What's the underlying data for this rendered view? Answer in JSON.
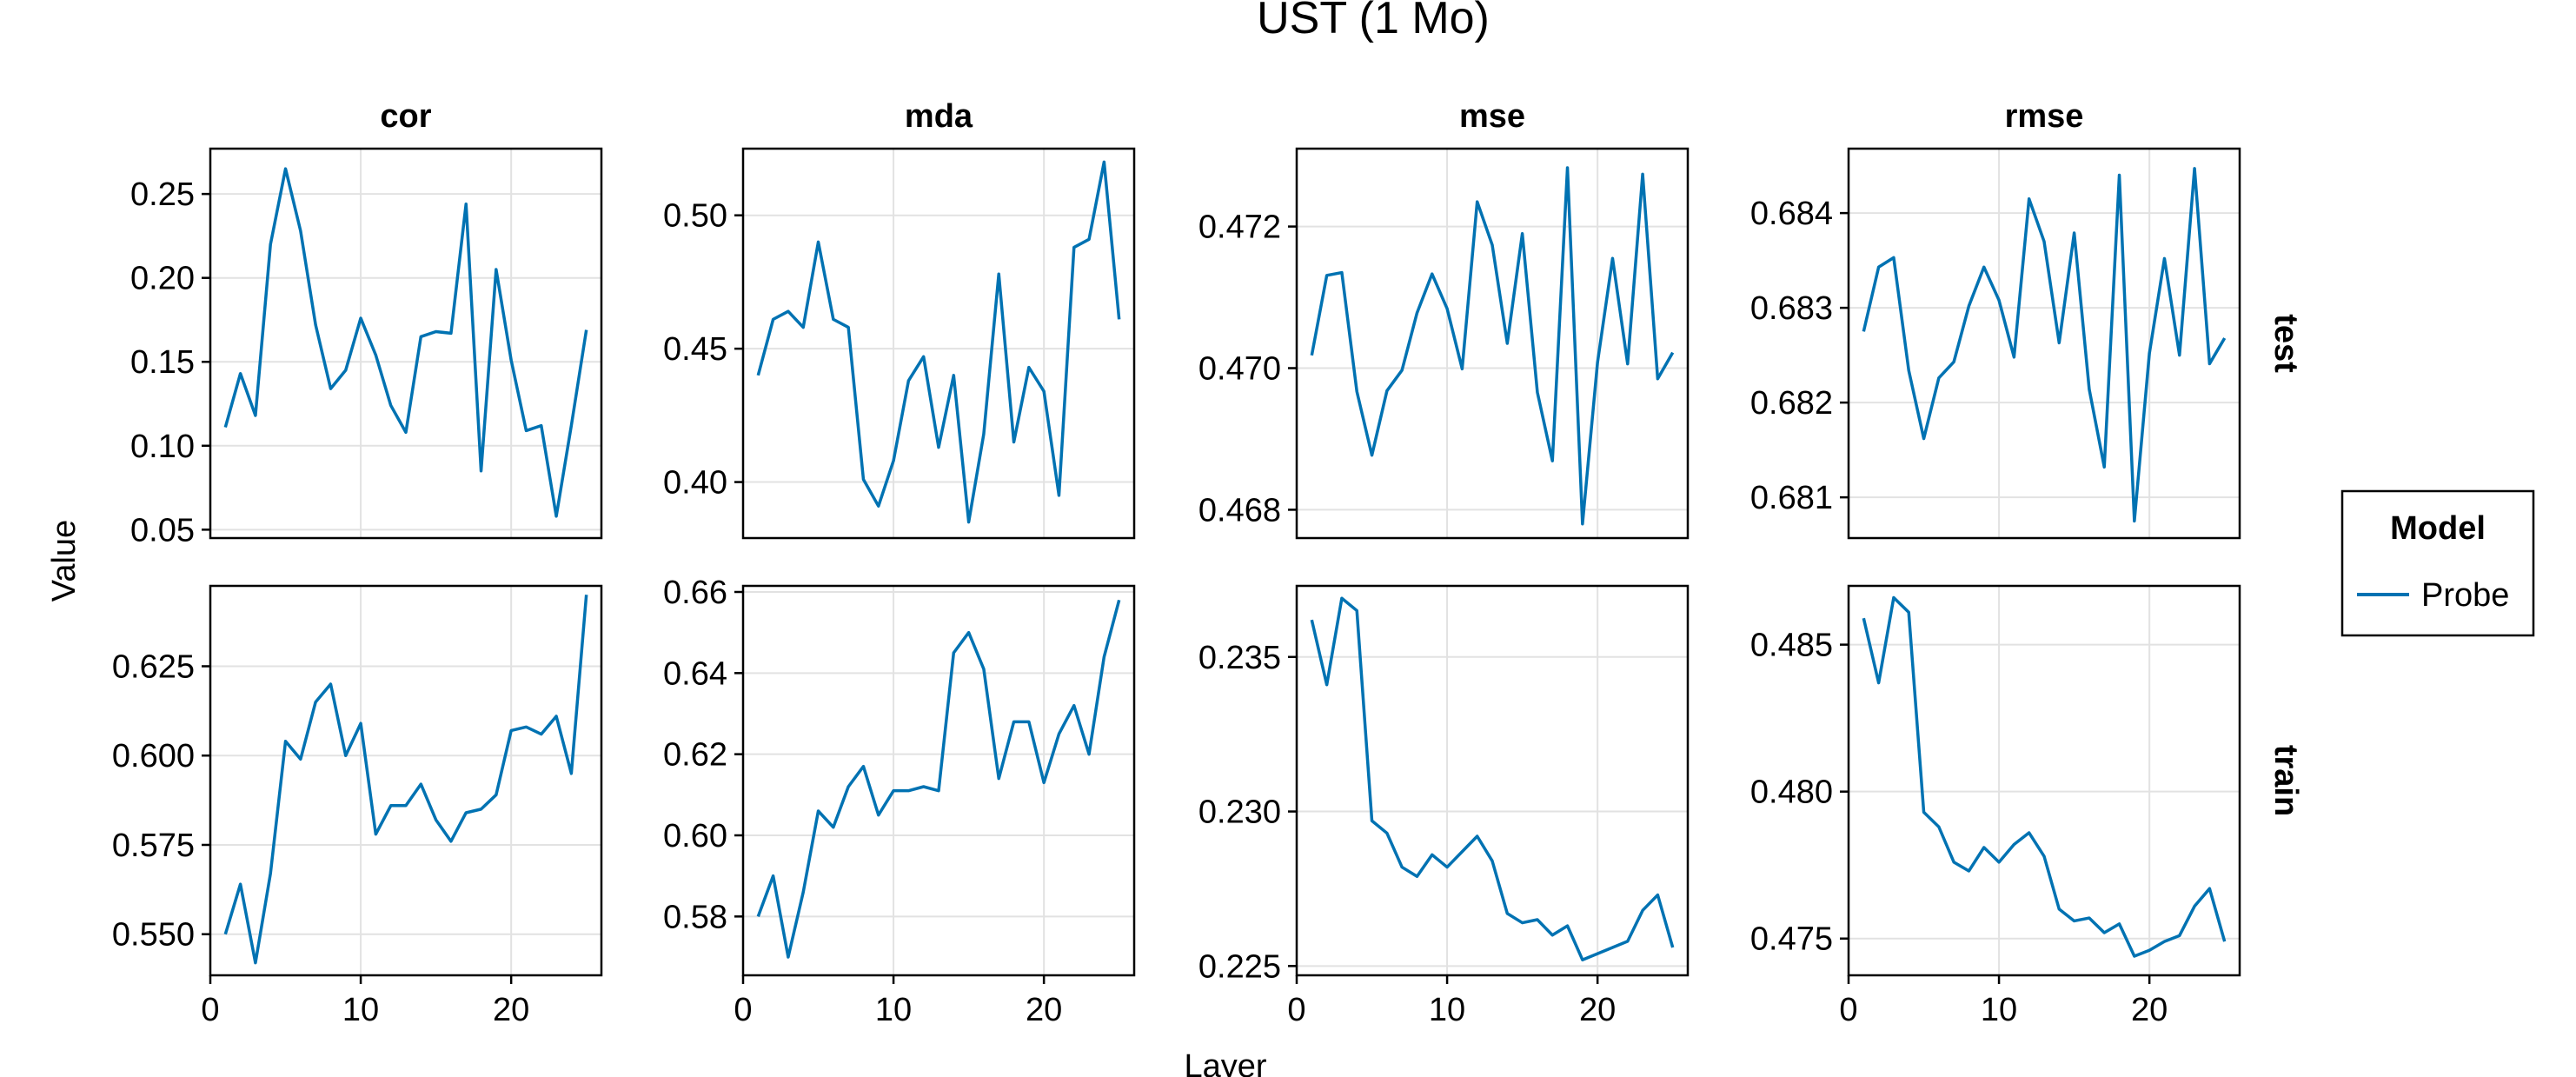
{
  "chart_data": {
    "type": "line",
    "title": "UST (1 Mo)",
    "xlabel": "Layer",
    "ylabel": "Value",
    "legend": {
      "title": "Model",
      "placement": "right",
      "entries": [
        {
          "name": "Probe",
          "color": "#0072B2"
        }
      ]
    },
    "grid": true,
    "columns": [
      "cor",
      "mda",
      "mse",
      "rmse"
    ],
    "rows": [
      "test",
      "train"
    ],
    "x": [
      1,
      2,
      3,
      4,
      5,
      6,
      7,
      8,
      9,
      10,
      11,
      12,
      13,
      14,
      15,
      16,
      17,
      18,
      19,
      20,
      21,
      22,
      23,
      24,
      25
    ],
    "xlim": [
      0,
      26
    ],
    "xticks": [
      0,
      10,
      20
    ],
    "panels": [
      {
        "column": "cor",
        "row": "test",
        "ylim": [
          0.045,
          0.277
        ],
        "yticks": [
          0.05,
          0.1,
          0.15,
          0.2,
          0.25
        ],
        "ytick_labels": [
          "0.05",
          "0.10",
          "0.15",
          "0.20",
          "0.25"
        ],
        "series": [
          {
            "name": "Probe",
            "values": [
              0.111,
              0.143,
              0.118,
              0.22,
              0.265,
              0.228,
              0.172,
              0.134,
              0.145,
              0.176,
              0.154,
              0.124,
              0.108,
              0.165,
              0.168,
              0.167,
              0.244,
              0.085,
              0.205,
              0.151,
              0.109,
              0.112,
              0.058,
              0.112,
              0.169
            ]
          }
        ]
      },
      {
        "column": "mda",
        "row": "test",
        "ylim": [
          0.379,
          0.525
        ],
        "yticks": [
          0.4,
          0.45,
          0.5
        ],
        "ytick_labels": [
          "0.40",
          "0.45",
          "0.50"
        ],
        "series": [
          {
            "name": "Probe",
            "values": [
              0.44,
              0.461,
              0.464,
              0.458,
              0.49,
              0.461,
              0.458,
              0.401,
              0.391,
              0.408,
              0.438,
              0.447,
              0.413,
              0.44,
              0.385,
              0.418,
              0.478,
              0.415,
              0.443,
              0.434,
              0.395,
              0.488,
              0.491,
              0.52,
              0.461
            ]
          }
        ]
      },
      {
        "column": "mse",
        "row": "test",
        "ylim": [
          0.4676,
          0.4731
        ],
        "yticks": [
          0.468,
          0.47,
          0.472
        ],
        "ytick_labels": [
          "0.468",
          "0.470",
          "0.472"
        ],
        "series": [
          {
            "name": "Probe",
            "values": [
              0.47018,
              0.47131,
              0.47135,
              0.46967,
              0.46877,
              0.46968,
              0.46997,
              0.47078,
              0.47133,
              0.47084,
              0.46999,
              0.47235,
              0.47174,
              0.47035,
              0.4719,
              0.46966,
              0.46869,
              0.47283,
              0.4678,
              0.47008,
              0.47155,
              0.47006,
              0.47274,
              0.46985,
              0.47022
            ]
          }
        ]
      },
      {
        "column": "rmse",
        "row": "test",
        "ylim": [
          0.68057,
          0.68468
        ],
        "yticks": [
          0.681,
          0.682,
          0.683,
          0.684
        ],
        "ytick_labels": [
          "0.681",
          "0.682",
          "0.683",
          "0.684"
        ],
        "series": [
          {
            "name": "Probe",
            "values": [
              0.68275,
              0.68343,
              0.68353,
              0.68234,
              0.68162,
              0.68226,
              0.68243,
              0.68302,
              0.68343,
              0.68308,
              0.68248,
              0.68415,
              0.6837,
              0.68263,
              0.68379,
              0.68214,
              0.68132,
              0.6844,
              0.68075,
              0.68252,
              0.68352,
              0.6825,
              0.68447,
              0.68241,
              0.68268
            ]
          }
        ]
      },
      {
        "column": "cor",
        "row": "train",
        "ylim": [
          0.5385,
          0.6475
        ],
        "yticks": [
          0.55,
          0.575,
          0.6,
          0.625
        ],
        "ytick_labels": [
          "0.550",
          "0.575",
          "0.600",
          "0.625"
        ],
        "series": [
          {
            "name": "Probe",
            "values": [
              0.55,
              0.564,
              0.542,
              0.567,
              0.604,
              0.599,
              0.615,
              0.62,
              0.6,
              0.609,
              0.578,
              0.586,
              0.586,
              0.592,
              0.582,
              0.576,
              0.584,
              0.585,
              0.589,
              0.607,
              0.608,
              0.606,
              0.611,
              0.595,
              0.645
            ]
          }
        ]
      },
      {
        "column": "mda",
        "row": "train",
        "ylim": [
          0.5655,
          0.6615
        ],
        "yticks": [
          0.58,
          0.6,
          0.62,
          0.64,
          0.66
        ],
        "ytick_labels": [
          "0.58",
          "0.60",
          "0.62",
          "0.64",
          "0.66"
        ],
        "series": [
          {
            "name": "Probe",
            "values": [
              0.58,
              0.59,
              0.57,
              0.586,
              0.606,
              0.602,
              0.612,
              0.617,
              0.605,
              0.611,
              0.611,
              0.612,
              0.611,
              0.645,
              0.65,
              0.641,
              0.614,
              0.628,
              0.628,
              0.613,
              0.625,
              0.632,
              0.62,
              0.644,
              0.658
            ]
          }
        ]
      },
      {
        "column": "mse",
        "row": "train",
        "ylim": [
          0.2247,
          0.2373
        ],
        "yticks": [
          0.225,
          0.23,
          0.235
        ],
        "ytick_labels": [
          "0.225",
          "0.230",
          "0.235"
        ],
        "series": [
          {
            "name": "Probe",
            "values": [
              0.2362,
              0.2341,
              0.2369,
              0.2365,
              0.2297,
              0.2293,
              0.2282,
              0.2279,
              0.2286,
              0.2282,
              0.2287,
              0.2292,
              0.2284,
              0.2267,
              0.2264,
              0.2265,
              0.226,
              0.2263,
              0.2252,
              0.2254,
              0.2256,
              0.2258,
              0.2268,
              0.2273,
              0.2256
            ]
          }
        ]
      },
      {
        "column": "rmse",
        "row": "train",
        "ylim": [
          0.47375,
          0.487
        ],
        "yticks": [
          0.475,
          0.48,
          0.485
        ],
        "ytick_labels": [
          "0.475",
          "0.480",
          "0.485"
        ],
        "series": [
          {
            "name": "Probe",
            "values": [
              0.4859,
              0.4837,
              0.4866,
              0.4861,
              0.4793,
              0.4788,
              0.4776,
              0.4773,
              0.4781,
              0.4776,
              0.4782,
              0.4786,
              0.4778,
              0.476,
              0.4756,
              0.4757,
              0.4752,
              0.4755,
              0.4744,
              0.4746,
              0.4749,
              0.4751,
              0.4761,
              0.4767,
              0.4749
            ]
          }
        ]
      }
    ]
  }
}
